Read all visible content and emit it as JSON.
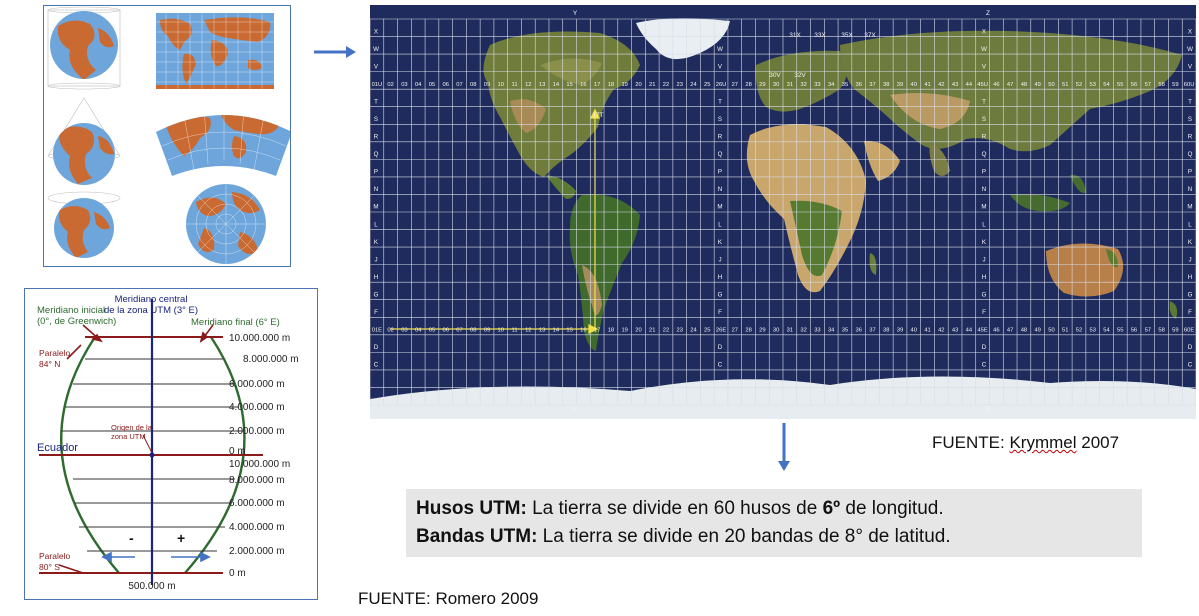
{
  "utm_diagram": {
    "meridiano_central": "Meridiano central",
    "meridiano_central_2": "de la zona UTM (3° E)",
    "meridiano_inicial": "Meridiano inicial",
    "meridiano_inicial_2": "(0°, de Greenwich)",
    "meridiano_final": "Meridiano final (6° E)",
    "paralelo_norte": "Paralelo",
    "paralelo_norte_2": "84° N",
    "paralelo_sur": "Paralelo",
    "paralelo_sur_2": "80° S",
    "ecuador": "Ecuador",
    "origen": "Origen de la",
    "origen_2": "zona UTM",
    "north_labels": [
      "10.000.000 m",
      "8.000.000 m",
      "6.000.000 m",
      "4.000.000 m",
      "2.000.000 m",
      "0 m"
    ],
    "south_labels": [
      "10.000.000 m",
      "8.000.000 m",
      "6.000.000 m",
      "4.000.000 m",
      "2.000.000 m",
      "0 m"
    ],
    "minus_sign": "-",
    "plus_sign": "+",
    "false_easting": "500.000 m"
  },
  "map": {
    "top_letter_left": "Y",
    "top_letter_right": "Z",
    "band_letters": [
      "X",
      "W",
      "V",
      "U",
      "T",
      "S",
      "R",
      "Q",
      "P",
      "N",
      "M",
      "L",
      "K",
      "J",
      "H",
      "G",
      "F",
      "E",
      "D",
      "C"
    ],
    "zone_numbers": [
      "01",
      "02",
      "03",
      "04",
      "05",
      "06",
      "07",
      "08",
      "09",
      "10",
      "11",
      "12",
      "13",
      "14",
      "15",
      "16",
      "17",
      "18",
      "19",
      "20",
      "21",
      "22",
      "23",
      "24",
      "25",
      "26",
      "27",
      "28",
      "29",
      "30",
      "31",
      "32",
      "33",
      "34",
      "35",
      "36",
      "37",
      "38",
      "39",
      "40",
      "41",
      "42",
      "43",
      "44",
      "45",
      "46",
      "47",
      "48",
      "49",
      "50",
      "51",
      "52",
      "53",
      "54",
      "55",
      "56",
      "57",
      "58",
      "59",
      "60"
    ],
    "row_u_first": "01U",
    "row_u_mid1": "26U",
    "row_u_mid2": "45U",
    "row_u_last": "60U",
    "row_e_first": "01E",
    "row_e_mid1": "26E",
    "row_e_mid2": "45E",
    "row_e_last": "60E",
    "special_zones": [
      "31X",
      "33X",
      "35X",
      "37X",
      "30V",
      "32V"
    ],
    "pointer_label": "17T",
    "bottom_letter_left": "A",
    "bottom_letter_right": "B"
  },
  "captions": {
    "fuente_krymmel_prefix": "FUENTE: ",
    "fuente_krymmel_author": "Krymmel",
    "fuente_krymmel_year": " 2007",
    "fuente_romero": "FUENTE: Romero 2009"
  },
  "info": {
    "line1_bold": "Husos UTM: ",
    "line1_text": "La tierra se divide en 60 husos de ",
    "line1_bold2": "6º",
    "line1_text2": " de longitud.",
    "line2_bold": "Bandas UTM:",
    "line2_text": " La tierra se divide en 20 bandas de 8° de latitud."
  },
  "colors": {
    "ocean": "#1e2b5c",
    "land": "#c86a32",
    "globe_ocean": "#6ea6dc",
    "accent_arrow": "#4472c4",
    "ellipse_green": "#2e6b2e",
    "line_red": "#8b1a1a",
    "meridian_blue": "#1a237e"
  }
}
